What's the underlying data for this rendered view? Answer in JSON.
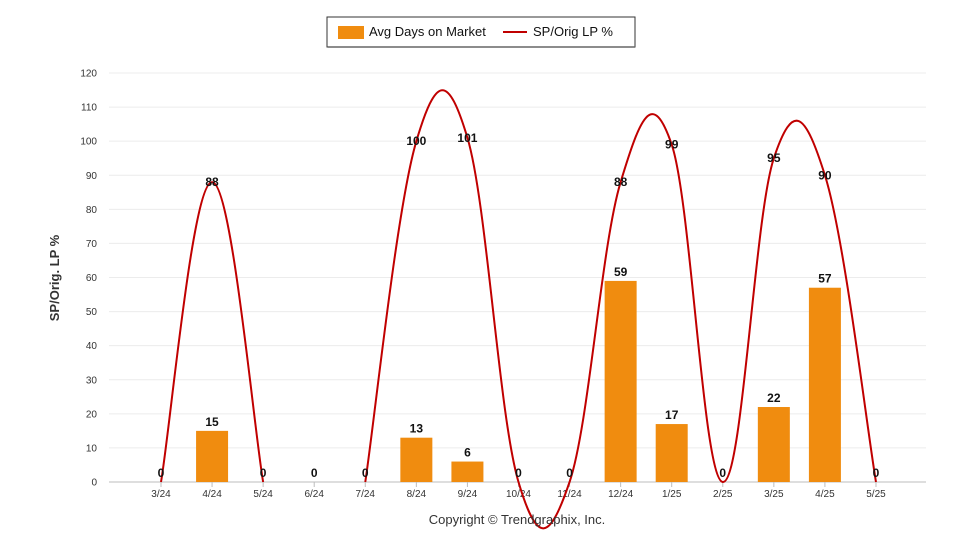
{
  "chart_data": {
    "type": "bar",
    "categories": [
      "3/24",
      "4/24",
      "5/24",
      "6/24",
      "7/24",
      "8/24",
      "9/24",
      "10/24",
      "11/24",
      "12/24",
      "1/25",
      "2/25",
      "3/25",
      "4/25",
      "5/25"
    ],
    "series": [
      {
        "name": "Avg Days on Market",
        "type": "bar",
        "color": "#f08c0f",
        "values": [
          0,
          15,
          0,
          0,
          0,
          13,
          6,
          0,
          0,
          59,
          17,
          0,
          22,
          57,
          0
        ],
        "value_labels": [
          "0",
          "15",
          "0",
          "0",
          "0",
          "13",
          "6",
          "0",
          "0",
          "59",
          "17",
          "0",
          "22",
          "57",
          "0"
        ]
      },
      {
        "name": "SP/Orig LP %",
        "type": "line",
        "smooth": true,
        "color": "#c00000",
        "values": [
          0,
          88,
          0,
          null,
          0,
          100,
          101,
          0,
          0,
          88,
          99,
          0,
          95,
          90,
          0
        ],
        "value_labels": [
          "",
          "88",
          "",
          "",
          "",
          "100",
          "101",
          "",
          "",
          "88",
          "99",
          "",
          "95",
          "90",
          ""
        ]
      }
    ],
    "ylabel": "SP/Orig. LP %",
    "ylim": [
      0,
      120
    ],
    "yticks": [
      0,
      10,
      20,
      30,
      40,
      50,
      60,
      70,
      80,
      90,
      100,
      110,
      120
    ],
    "grid": true,
    "legend_position": "top-center"
  },
  "copyright": "Copyright © Trendgraphix, Inc."
}
